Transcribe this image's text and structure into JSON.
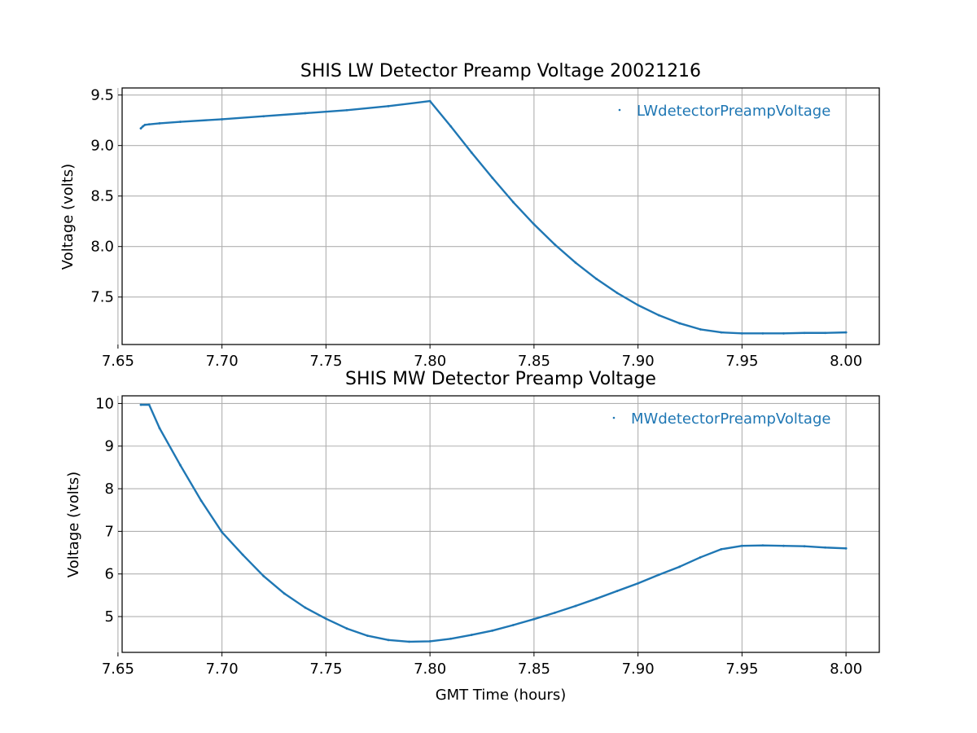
{
  "chart_data": [
    {
      "type": "scatter",
      "title": "SHIS LW Detector Preamp Voltage 20021216",
      "xlabel": "",
      "ylabel": "Voltage (volts)",
      "xlim": [
        7.652,
        8.016
      ],
      "ylim": [
        7.03,
        9.57
      ],
      "xticks": [
        7.65,
        7.7,
        7.75,
        7.8,
        7.85,
        7.9,
        7.95,
        8.0
      ],
      "xtick_labels": [
        "7.65",
        "7.70",
        "7.75",
        "7.80",
        "7.85",
        "7.90",
        "7.95",
        "8.00"
      ],
      "yticks": [
        7.5,
        8.0,
        8.5,
        9.0,
        9.5
      ],
      "ytick_labels": [
        "7.5",
        "8.0",
        "8.5",
        "9.0",
        "9.5"
      ],
      "grid": true,
      "legend_position": "top-right",
      "series": [
        {
          "name": "LWdetectorPreampVoltage",
          "color": "#1f77b4",
          "x": [
            7.661,
            7.662,
            7.663,
            7.665,
            7.67,
            7.68,
            7.7,
            7.72,
            7.74,
            7.76,
            7.78,
            7.8,
            7.81,
            7.82,
            7.83,
            7.84,
            7.85,
            7.86,
            7.87,
            7.88,
            7.89,
            7.9,
            7.91,
            7.92,
            7.93,
            7.94,
            7.95,
            7.96,
            7.97,
            7.98,
            7.99,
            8.0
          ],
          "y": [
            9.17,
            9.19,
            9.205,
            9.21,
            9.22,
            9.235,
            9.26,
            9.29,
            9.32,
            9.35,
            9.39,
            9.44,
            9.19,
            8.93,
            8.68,
            8.44,
            8.22,
            8.02,
            7.84,
            7.68,
            7.54,
            7.42,
            7.32,
            7.24,
            7.18,
            7.15,
            7.14,
            7.14,
            7.14,
            7.145,
            7.145,
            7.15
          ]
        }
      ]
    },
    {
      "type": "scatter",
      "title": "SHIS MW Detector Preamp Voltage",
      "xlabel": "GMT Time (hours)",
      "ylabel": "Voltage (volts)",
      "xlim": [
        7.652,
        8.016
      ],
      "ylim": [
        4.16,
        10.18
      ],
      "xticks": [
        7.65,
        7.7,
        7.75,
        7.8,
        7.85,
        7.9,
        7.95,
        8.0
      ],
      "xtick_labels": [
        "7.65",
        "7.70",
        "7.75",
        "7.80",
        "7.85",
        "7.90",
        "7.95",
        "8.00"
      ],
      "yticks": [
        5,
        6,
        7,
        8,
        9,
        10
      ],
      "ytick_labels": [
        "5",
        "6",
        "7",
        "8",
        "9",
        "10"
      ],
      "grid": true,
      "legend_position": "top-right",
      "series": [
        {
          "name": "MWdetectorPreampVoltage",
          "color": "#1f77b4",
          "x": [
            7.661,
            7.665,
            7.67,
            7.68,
            7.69,
            7.7,
            7.71,
            7.72,
            7.73,
            7.74,
            7.75,
            7.76,
            7.77,
            7.78,
            7.79,
            7.8,
            7.81,
            7.82,
            7.83,
            7.84,
            7.85,
            7.86,
            7.87,
            7.88,
            7.89,
            7.9,
            7.91,
            7.92,
            7.93,
            7.94,
            7.95,
            7.96,
            7.97,
            7.98,
            7.99,
            8.0
          ],
          "y": [
            9.97,
            9.97,
            9.42,
            8.55,
            7.72,
            6.98,
            6.45,
            5.95,
            5.54,
            5.21,
            4.95,
            4.72,
            4.55,
            4.45,
            4.41,
            4.42,
            4.48,
            4.57,
            4.67,
            4.8,
            4.94,
            5.09,
            5.25,
            5.42,
            5.6,
            5.78,
            5.98,
            6.17,
            6.39,
            6.58,
            6.66,
            6.67,
            6.66,
            6.65,
            6.62,
            6.6
          ]
        }
      ]
    }
  ]
}
